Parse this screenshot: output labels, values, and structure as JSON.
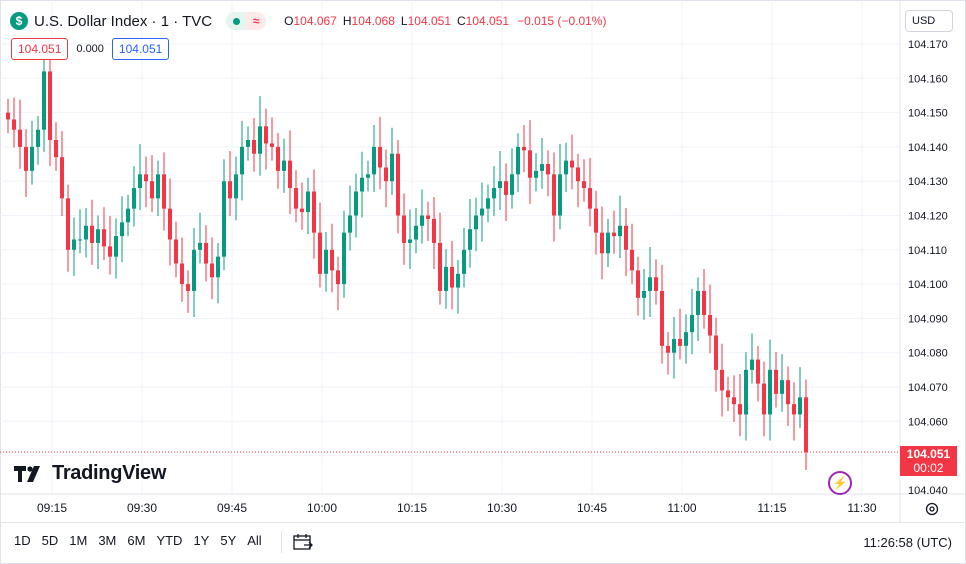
{
  "header": {
    "symbol_icon": "$",
    "title": "U.S. Dollar Index · 1 · TVC",
    "status_icons": [
      "market-open-dot-icon",
      "realtime-wave-icon"
    ],
    "wave_glyph": "≈",
    "ohlc": {
      "o_label": "O",
      "o": "104.067",
      "h_label": "H",
      "h": "104.068",
      "l_label": "L",
      "l": "104.051",
      "c_label": "C",
      "c": "104.051",
      "change": "−0.015 (−0.01%)"
    }
  },
  "badges": {
    "sell": "104.051",
    "spread": "0.000",
    "buy": "104.051"
  },
  "currency_button": "USD",
  "last_price": {
    "value": "104.051",
    "countdown": "00:02"
  },
  "brand": "TradingView",
  "bottom_bar": {
    "ranges": [
      "1D",
      "5D",
      "1M",
      "3M",
      "6M",
      "YTD",
      "1Y",
      "5Y",
      "All"
    ],
    "clock": "11:26:58 (UTC)"
  },
  "colors": {
    "up": "#089981",
    "down": "#f23645",
    "grid": "#f0f3fa",
    "text": "#131722"
  },
  "chart_data": {
    "type": "candlestick",
    "interval": "1 minute",
    "x_tick_labels": [
      "09:15",
      "09:30",
      "09:45",
      "10:00",
      "10:15",
      "10:30",
      "10:45",
      "11:00",
      "11:15",
      "11:30"
    ],
    "y_tick_labels": [
      "104.170",
      "104.160",
      "104.150",
      "104.140",
      "104.130",
      "104.120",
      "104.110",
      "104.100",
      "104.090",
      "104.080",
      "104.070",
      "104.060",
      "104.040"
    ],
    "ylim": [
      104.04,
      104.17
    ],
    "last_price": 104.051,
    "closes": [
      104.148,
      104.145,
      104.14,
      104.133,
      104.14,
      104.145,
      104.162,
      104.142,
      104.137,
      104.125,
      104.11,
      104.113,
      104.113,
      104.117,
      104.112,
      104.116,
      104.111,
      104.108,
      104.114,
      104.118,
      104.122,
      104.128,
      104.132,
      104.13,
      104.125,
      104.132,
      104.122,
      104.113,
      104.106,
      104.1,
      104.098,
      104.11,
      104.112,
      104.106,
      104.102,
      104.108,
      104.13,
      104.125,
      104.132,
      104.14,
      104.142,
      104.138,
      104.146,
      104.141,
      104.14,
      104.133,
      104.136,
      104.128,
      104.122,
      104.121,
      104.127,
      104.115,
      104.103,
      104.11,
      104.104,
      104.1,
      104.115,
      104.12,
      104.127,
      104.131,
      104.132,
      104.14,
      104.134,
      104.13,
      104.138,
      104.12,
      104.112,
      104.113,
      104.117,
      104.12,
      104.119,
      104.112,
      104.098,
      104.105,
      104.099,
      104.103,
      104.11,
      104.116,
      104.12,
      104.122,
      104.125,
      104.128,
      104.13,
      104.126,
      104.132,
      104.14,
      104.139,
      104.131,
      104.133,
      104.135,
      104.132,
      104.12,
      104.132,
      104.136,
      104.134,
      104.13,
      104.128,
      104.122,
      104.115,
      104.109,
      104.115,
      104.114,
      104.117,
      104.11,
      104.104,
      104.096,
      104.098,
      104.102,
      104.098,
      104.082,
      104.08,
      104.084,
      104.082,
      104.086,
      104.091,
      104.098,
      104.091,
      104.085,
      104.075,
      104.069,
      104.067,
      104.065,
      104.062,
      104.075,
      104.078,
      104.071,
      104.062,
      104.075,
      104.068,
      104.072,
      104.065,
      104.062,
      104.067,
      104.051
    ]
  }
}
